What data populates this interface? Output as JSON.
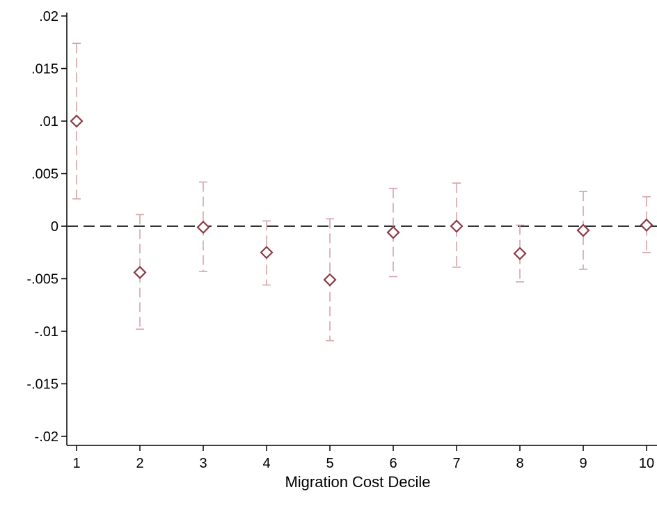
{
  "chart_data": {
    "type": "scatter",
    "title": "",
    "xlabel": "Migration Cost Decile",
    "ylabel": "",
    "xlim": [
      1,
      10
    ],
    "ylim": [
      -0.02,
      0.02
    ],
    "x": [
      1,
      2,
      3,
      4,
      5,
      6,
      7,
      8,
      9,
      10
    ],
    "series": [
      {
        "values": [
          0.01,
          -0.0044,
          -0.0001,
          -0.0025,
          -0.0051,
          -0.0006,
          0.0,
          -0.0026,
          -0.0004,
          0.0001
        ],
        "ci_low": [
          0.0026,
          -0.0098,
          -0.0043,
          -0.0056,
          -0.0109,
          -0.0048,
          -0.0039,
          -0.0053,
          -0.0041,
          -0.0025
        ],
        "ci_high": [
          0.0174,
          0.0011,
          0.0042,
          0.0005,
          0.0007,
          0.0036,
          0.0041,
          0.0001,
          0.0033,
          0.0028
        ]
      }
    ],
    "yticks": [
      0.02,
      0.015,
      0.01,
      0.005,
      0,
      -0.005,
      -0.01,
      -0.015,
      -0.02
    ],
    "ytick_labels": [
      ".02",
      ".015",
      ".01",
      ".005",
      "0",
      "-.005",
      "-.01",
      "-.015",
      "-.02"
    ],
    "xtick_labels": [
      "1",
      "2",
      "3",
      "4",
      "5",
      "6",
      "7",
      "8",
      "9",
      "10"
    ],
    "reference_line": 0,
    "grid": false,
    "colors": {
      "marker": "#8b3a44",
      "ci": "#d4a3a8",
      "reference": "#333333",
      "axis": "#000000"
    }
  }
}
